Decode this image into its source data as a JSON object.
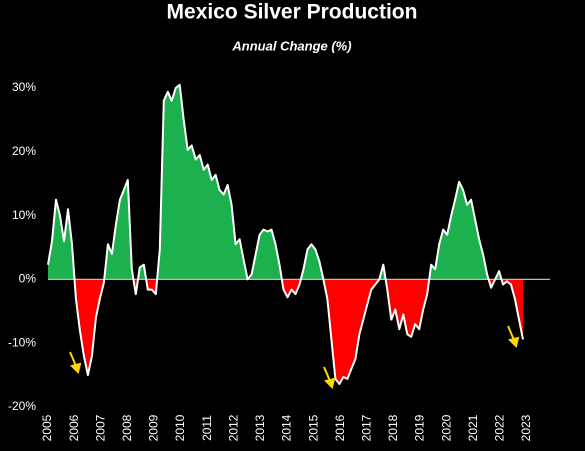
{
  "chart_data": {
    "type": "area",
    "title": "Mexico Silver Production",
    "subtitle": "Annual Change (%)",
    "x": [
      2005,
      2005.15,
      2005.3,
      2005.45,
      2005.6,
      2005.75,
      2005.9,
      2006.05,
      2006.2,
      2006.35,
      2006.5,
      2006.65,
      2006.8,
      2006.95,
      2007.1,
      2007.25,
      2007.4,
      2007.55,
      2007.7,
      2007.85,
      2008,
      2008.15,
      2008.3,
      2008.45,
      2008.6,
      2008.75,
      2008.9,
      2009.05,
      2009.2,
      2009.35,
      2009.5,
      2009.65,
      2009.8,
      2009.95,
      2010.1,
      2010.25,
      2010.4,
      2010.55,
      2010.7,
      2010.85,
      2011,
      2011.15,
      2011.3,
      2011.45,
      2011.6,
      2011.75,
      2011.9,
      2012.05,
      2012.2,
      2012.35,
      2012.5,
      2012.65,
      2012.8,
      2012.95,
      2013.1,
      2013.25,
      2013.4,
      2013.55,
      2013.7,
      2013.85,
      2014,
      2014.15,
      2014.3,
      2014.45,
      2014.6,
      2014.75,
      2014.9,
      2015.05,
      2015.2,
      2015.35,
      2015.5,
      2015.65,
      2015.8,
      2015.95,
      2016.1,
      2016.25,
      2016.4,
      2016.55,
      2016.7,
      2016.85,
      2017,
      2017.15,
      2017.3,
      2017.45,
      2017.6,
      2017.75,
      2017.9,
      2018.05,
      2018.2,
      2018.35,
      2018.5,
      2018.65,
      2018.8,
      2018.95,
      2019.1,
      2019.25,
      2019.4,
      2019.55,
      2019.7,
      2019.85,
      2020,
      2020.15,
      2020.3,
      2020.45,
      2020.6,
      2020.75,
      2020.9,
      2021.05,
      2021.2,
      2021.35,
      2021.5,
      2021.65,
      2021.8,
      2021.95,
      2022.1,
      2022.25,
      2022.4,
      2022.55,
      2022.7,
      2022.85
    ],
    "series": [
      {
        "values": [
          2.3,
          6,
          12.5,
          10,
          6,
          11,
          5.5,
          -3,
          -8,
          -12,
          -15,
          -12,
          -6,
          -3,
          -0.5,
          5.5,
          4,
          8.6,
          12.5,
          14,
          15.6,
          1.6,
          -2.3,
          1.9,
          2.3,
          -1.6,
          -1.6,
          -2.3,
          4.7,
          28,
          29.4,
          28,
          30,
          30.5,
          25,
          20.3,
          21,
          18.8,
          19.5,
          17.2,
          18,
          15.6,
          16.4,
          14,
          13.3,
          14.8,
          11.7,
          5.5,
          6.3,
          3.1,
          0,
          0.8,
          3.9,
          7,
          7.8,
          7.5,
          7.8,
          5.5,
          2.3,
          -1.6,
          -2.8,
          -1.6,
          -2.3,
          -0.8,
          1.6,
          4.7,
          5.5,
          4.7,
          2.8,
          0,
          -3.1,
          -9.4,
          -15.6,
          -16.4,
          -15.3,
          -15.6,
          -14,
          -12.5,
          -8.6,
          -6.3,
          -3.9,
          -1.6,
          -0.8,
          0,
          2.3,
          -1.6,
          -6.3,
          -4.7,
          -7.8,
          -5.5,
          -8.6,
          -9,
          -7,
          -7.8,
          -4.7,
          -2.3,
          2.3,
          1.6,
          5.5,
          7.8,
          7,
          10,
          12.5,
          15.3,
          14,
          11.7,
          12.5,
          9.4,
          6.3,
          3.9,
          0.8,
          -1.3,
          0,
          1.3,
          -0.8,
          -0.3,
          -0.8,
          -3.1,
          -6.3,
          -9.4
        ]
      }
    ],
    "positive_color": "#1db04e",
    "negative_color": "#ff0000",
    "line_color": "#ffffff",
    "xlim": [
      2005,
      2023
    ],
    "xticks": [
      2005,
      2006,
      2007,
      2008,
      2009,
      2010,
      2011,
      2012,
      2013,
      2014,
      2015,
      2016,
      2017,
      2018,
      2019,
      2020,
      2021,
      2022,
      2023
    ],
    "ylim": [
      -20,
      30
    ],
    "yticks": [
      {
        "value": 30,
        "label": "30%"
      },
      {
        "value": 20,
        "label": "20%"
      },
      {
        "value": 10,
        "label": "10%"
      },
      {
        "value": 0,
        "label": "0%"
      },
      {
        "value": -10,
        "label": "-10%"
      },
      {
        "value": -20,
        "label": "-20%"
      }
    ]
  }
}
